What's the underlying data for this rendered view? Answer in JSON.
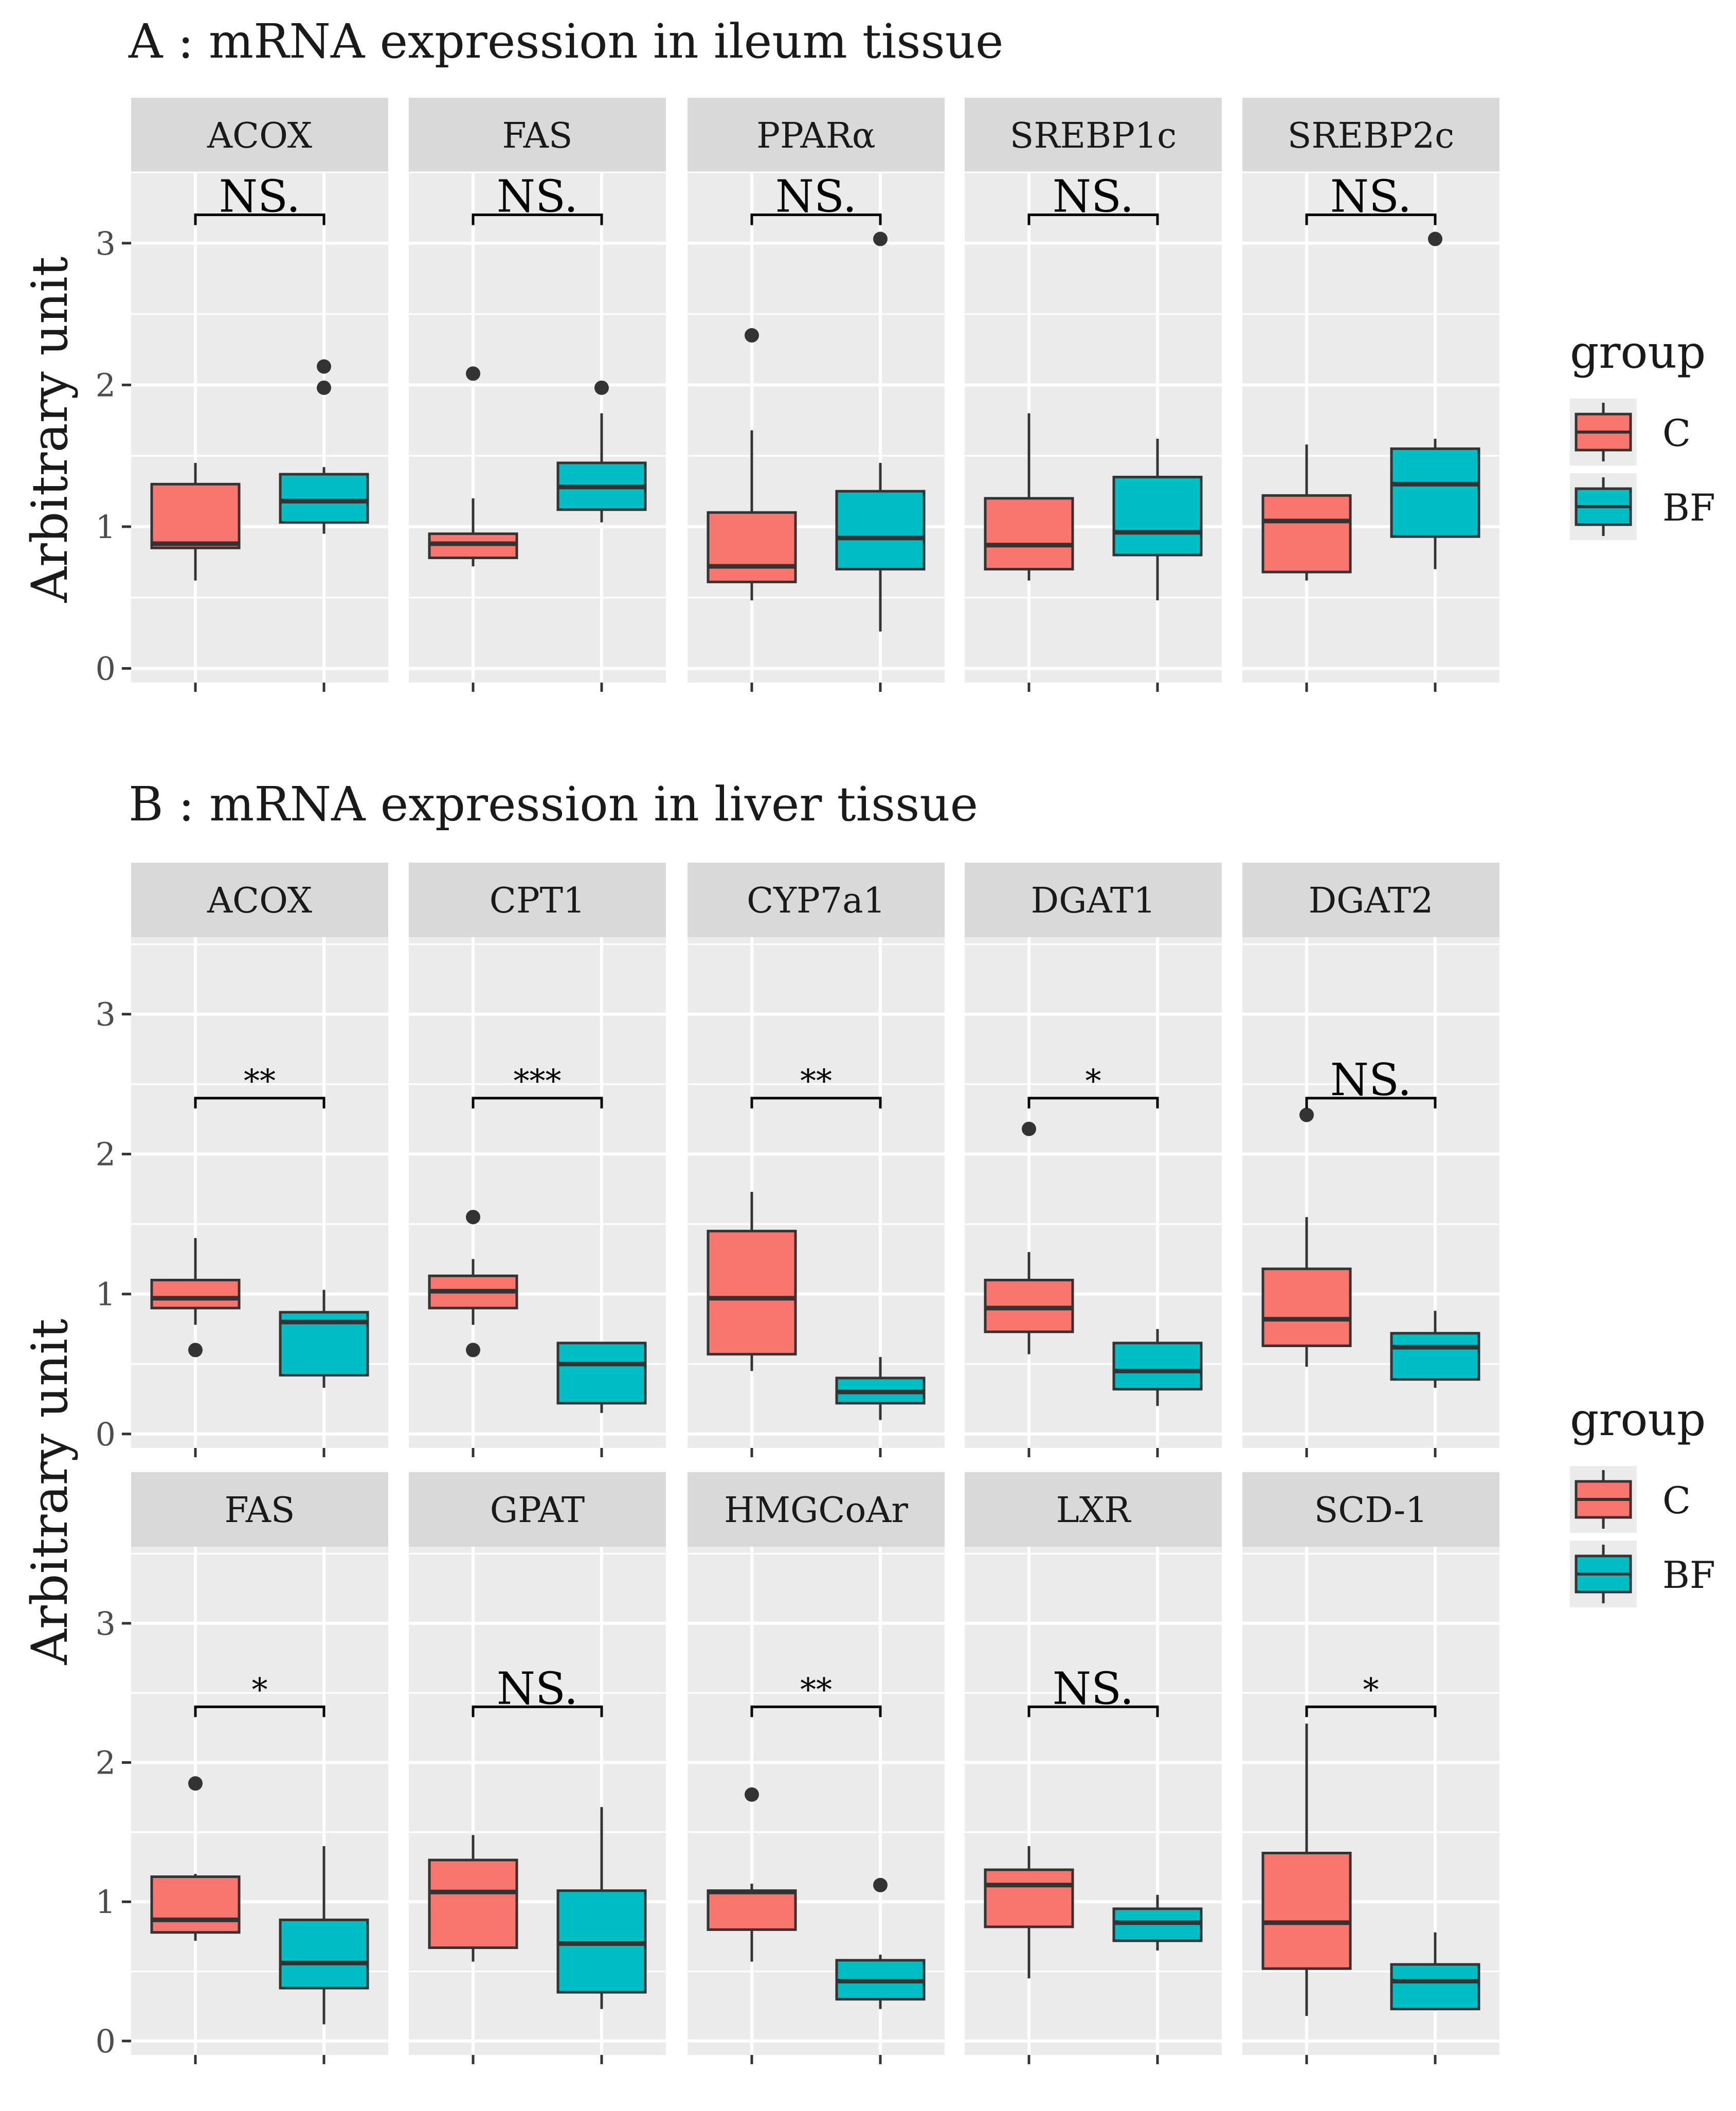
{
  "colors": {
    "panel_bg": "#EBEBEB",
    "strip_bg": "#D9D9D9",
    "grid": "#FFFFFF",
    "c_fill": "#F8766D",
    "bf_fill": "#00BFC4",
    "line": "#333333",
    "text": "#1A1A1A",
    "tick_text": "#4D4D4D"
  },
  "legend": {
    "title": "group",
    "items": [
      {
        "key": "C",
        "label": "C",
        "color": "#F8766D"
      },
      {
        "key": "BF",
        "label": "BF",
        "color": "#00BFC4"
      }
    ]
  },
  "chart_data": [
    {
      "id": "A",
      "type": "boxplot",
      "title": "A : mRNA expression in ileum tissue",
      "ylabel": "Arbitrary unit",
      "ylim": [
        -0.1,
        3.5
      ],
      "yticks": [
        0,
        1,
        2,
        3
      ],
      "groups": [
        "C",
        "BF"
      ],
      "facets": [
        {
          "name": "ACOX",
          "sig": "NS.",
          "bracket_y": 3.2,
          "boxes": {
            "C": {
              "lo": 0.62,
              "q1": 0.85,
              "med": 0.88,
              "q3": 1.3,
              "hi": 1.45,
              "out": []
            },
            "BF": {
              "lo": 0.95,
              "q1": 1.03,
              "med": 1.18,
              "q3": 1.37,
              "hi": 1.42,
              "out": [
                1.98,
                2.13
              ]
            }
          }
        },
        {
          "name": "FAS",
          "sig": "NS.",
          "bracket_y": 3.2,
          "boxes": {
            "C": {
              "lo": 0.72,
              "q1": 0.78,
              "med": 0.88,
              "q3": 0.95,
              "hi": 1.2,
              "out": [
                2.08
              ]
            },
            "BF": {
              "lo": 1.03,
              "q1": 1.12,
              "med": 1.28,
              "q3": 1.45,
              "hi": 1.8,
              "out": [
                1.98
              ]
            }
          }
        },
        {
          "name": "PPARα",
          "sig": "NS.",
          "bracket_y": 3.2,
          "boxes": {
            "C": {
              "lo": 0.48,
              "q1": 0.61,
              "med": 0.72,
              "q3": 1.1,
              "hi": 1.68,
              "out": [
                2.35
              ]
            },
            "BF": {
              "lo": 0.26,
              "q1": 0.7,
              "med": 0.92,
              "q3": 1.25,
              "hi": 1.45,
              "out": [
                3.03
              ]
            }
          }
        },
        {
          "name": "SREBP1c",
          "sig": "NS.",
          "bracket_y": 3.2,
          "boxes": {
            "C": {
              "lo": 0.62,
              "q1": 0.7,
              "med": 0.87,
              "q3": 1.2,
              "hi": 1.8,
              "out": []
            },
            "BF": {
              "lo": 0.48,
              "q1": 0.8,
              "med": 0.96,
              "q3": 1.35,
              "hi": 1.62,
              "out": []
            }
          }
        },
        {
          "name": "SREBP2c",
          "sig": "NS.",
          "bracket_y": 3.2,
          "boxes": {
            "C": {
              "lo": 0.62,
              "q1": 0.68,
              "med": 1.04,
              "q3": 1.22,
              "hi": 1.58,
              "out": []
            },
            "BF": {
              "lo": 0.7,
              "q1": 0.93,
              "med": 1.3,
              "q3": 1.55,
              "hi": 1.62,
              "out": [
                3.03
              ]
            }
          }
        }
      ]
    },
    {
      "id": "B",
      "type": "boxplot",
      "title": "B : mRNA expression in liver tissue",
      "ylabel": "Arbitrary unit",
      "ylim": [
        -0.1,
        3.55
      ],
      "yticks": [
        0,
        1,
        2,
        3
      ],
      "groups": [
        "C",
        "BF"
      ],
      "facets": [
        {
          "name": "ACOX",
          "sig": "**",
          "bracket_y": 2.4,
          "boxes": {
            "C": {
              "lo": 0.78,
              "q1": 0.9,
              "med": 0.97,
              "q3": 1.1,
              "hi": 1.4,
              "out": [
                0.6
              ]
            },
            "BF": {
              "lo": 0.33,
              "q1": 0.42,
              "med": 0.8,
              "q3": 0.87,
              "hi": 1.03,
              "out": []
            }
          }
        },
        {
          "name": "CPT1",
          "sig": "***",
          "bracket_y": 2.4,
          "boxes": {
            "C": {
              "lo": 0.78,
              "q1": 0.9,
              "med": 1.02,
              "q3": 1.13,
              "hi": 1.25,
              "out": [
                1.55,
                0.6
              ]
            },
            "BF": {
              "lo": 0.15,
              "q1": 0.22,
              "med": 0.5,
              "q3": 0.65,
              "hi": 0.65,
              "out": []
            }
          }
        },
        {
          "name": "CYP7a1",
          "sig": "**",
          "bracket_y": 2.4,
          "boxes": {
            "C": {
              "lo": 0.45,
              "q1": 0.57,
              "med": 0.97,
              "q3": 1.45,
              "hi": 1.73,
              "out": []
            },
            "BF": {
              "lo": 0.1,
              "q1": 0.22,
              "med": 0.3,
              "q3": 0.4,
              "hi": 0.55,
              "out": []
            }
          }
        },
        {
          "name": "DGAT1",
          "sig": "*",
          "bracket_y": 2.4,
          "boxes": {
            "C": {
              "lo": 0.57,
              "q1": 0.73,
              "med": 0.9,
              "q3": 1.1,
              "hi": 1.3,
              "out": [
                2.18
              ]
            },
            "BF": {
              "lo": 0.2,
              "q1": 0.32,
              "med": 0.45,
              "q3": 0.65,
              "hi": 0.75,
              "out": []
            }
          }
        },
        {
          "name": "DGAT2",
          "sig": "NS.",
          "bracket_y": 2.4,
          "boxes": {
            "C": {
              "lo": 0.48,
              "q1": 0.63,
              "med": 0.82,
              "q3": 1.18,
              "hi": 1.55,
              "out": [
                2.28
              ]
            },
            "BF": {
              "lo": 0.33,
              "q1": 0.39,
              "med": 0.62,
              "q3": 0.72,
              "hi": 0.88,
              "out": []
            }
          }
        },
        {
          "name": "FAS",
          "sig": "*",
          "bracket_y": 2.4,
          "boxes": {
            "C": {
              "lo": 0.72,
              "q1": 0.78,
              "med": 0.87,
              "q3": 1.18,
              "hi": 1.2,
              "out": [
                1.85
              ]
            },
            "BF": {
              "lo": 0.12,
              "q1": 0.38,
              "med": 0.56,
              "q3": 0.87,
              "hi": 1.4,
              "out": []
            }
          }
        },
        {
          "name": "GPAT",
          "sig": "NS.",
          "bracket_y": 2.4,
          "boxes": {
            "C": {
              "lo": 0.57,
              "q1": 0.67,
              "med": 1.07,
              "q3": 1.3,
              "hi": 1.48,
              "out": []
            },
            "BF": {
              "lo": 0.23,
              "q1": 0.35,
              "med": 0.7,
              "q3": 1.08,
              "hi": 1.68,
              "out": []
            }
          }
        },
        {
          "name": "HMGCoAr",
          "sig": "**",
          "bracket_y": 2.4,
          "boxes": {
            "C": {
              "lo": 0.57,
              "q1": 0.8,
              "med": 1.07,
              "q3": 1.08,
              "hi": 1.13,
              "out": [
                1.77
              ]
            },
            "BF": {
              "lo": 0.23,
              "q1": 0.3,
              "med": 0.43,
              "q3": 0.58,
              "hi": 0.62,
              "out": [
                1.12
              ]
            }
          }
        },
        {
          "name": "LXR",
          "sig": "NS.",
          "bracket_y": 2.4,
          "boxes": {
            "C": {
              "lo": 0.45,
              "q1": 0.82,
              "med": 1.12,
              "q3": 1.23,
              "hi": 1.4,
              "out": []
            },
            "BF": {
              "lo": 0.65,
              "q1": 0.72,
              "med": 0.85,
              "q3": 0.95,
              "hi": 1.05,
              "out": []
            }
          }
        },
        {
          "name": "SCD-1",
          "sig": "*",
          "bracket_y": 2.4,
          "boxes": {
            "C": {
              "lo": 0.18,
              "q1": 0.52,
              "med": 0.85,
              "q3": 1.35,
              "hi": 2.28,
              "out": []
            },
            "BF": {
              "lo": 0.22,
              "q1": 0.23,
              "med": 0.43,
              "q3": 0.55,
              "hi": 0.78,
              "out": []
            }
          }
        }
      ]
    }
  ]
}
